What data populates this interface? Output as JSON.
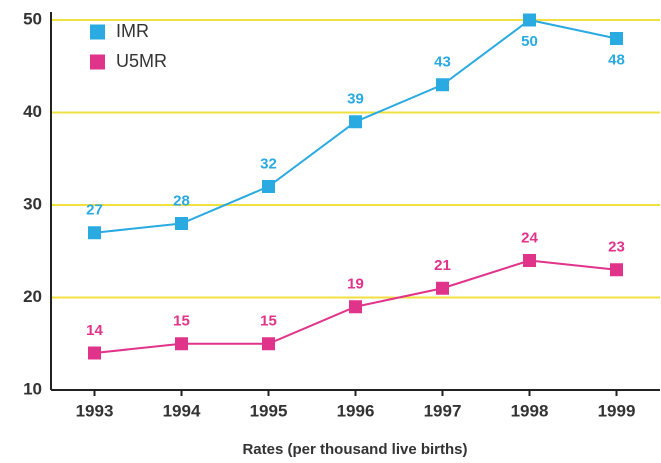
{
  "chart_data": {
    "type": "line",
    "x_label": "Rates (per thousand live births)",
    "categories": [
      "1993",
      "1994",
      "1995",
      "1996",
      "1997",
      "1998",
      "1999"
    ],
    "series": [
      {
        "name": "IMR",
        "color": "#29aae1",
        "values": [
          27,
          28,
          32,
          39,
          43,
          50,
          48
        ]
      },
      {
        "name": "U5MR",
        "color": "#e0338a",
        "values": [
          14,
          15,
          15,
          19,
          21,
          24,
          23
        ]
      }
    ],
    "ylim": [
      10,
      50
    ],
    "yticks": [
      10,
      20,
      30,
      40,
      50
    ],
    "grid": true,
    "grid_color": "#f0e040",
    "legend": "upper left"
  }
}
